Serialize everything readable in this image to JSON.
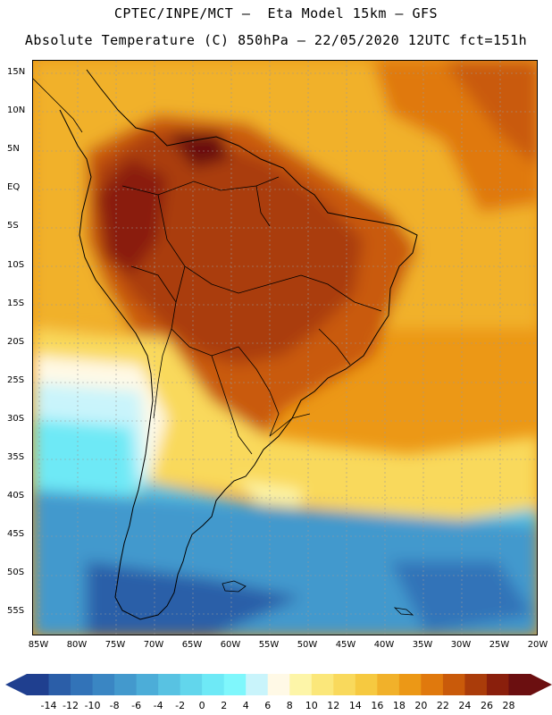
{
  "header": {
    "line1": "CPTEC/INPE/MCT –  Eta Model 15km – GFS",
    "line2": "Absolute Temperature (C) 850hPa – 22/05/2020 12UTC fct=151h"
  },
  "map": {
    "lat_labels": [
      "15N",
      "10N",
      "5N",
      "EQ",
      "5S",
      "10S",
      "15S",
      "20S",
      "25S",
      "30S",
      "35S",
      "40S",
      "45S",
      "50S",
      "55S"
    ],
    "lon_labels": [
      "85W",
      "80W",
      "75W",
      "70W",
      "65W",
      "60W",
      "55W",
      "50W",
      "45W",
      "40W",
      "35W",
      "30W",
      "25W",
      "20W"
    ]
  },
  "colorbar": {
    "labels": [
      "-14",
      "-12",
      "-10",
      "-8",
      "-6",
      "-4",
      "-2",
      "0",
      "2",
      "4",
      "6",
      "8",
      "10",
      "12",
      "14",
      "16",
      "18",
      "20",
      "22",
      "24",
      "26",
      "28"
    ],
    "colors": [
      "#1f3f8f",
      "#2b5ea8",
      "#3273b8",
      "#3a86c3",
      "#4399cd",
      "#4cadd8",
      "#58c2e2",
      "#62d6ec",
      "#6ee9f6",
      "#7ff7fc",
      "#c9f4fb",
      "#fff9e6",
      "#fdf5a8",
      "#fbe77a",
      "#f9d95c",
      "#f6c940",
      "#f1b12a",
      "#ec9816",
      "#e0790d",
      "#c95a0a",
      "#aa3c0a",
      "#8a1f0c",
      "#6b0f10"
    ],
    "end_left_color": "#1f3f8f",
    "end_right_color": "#6b0f10"
  }
}
